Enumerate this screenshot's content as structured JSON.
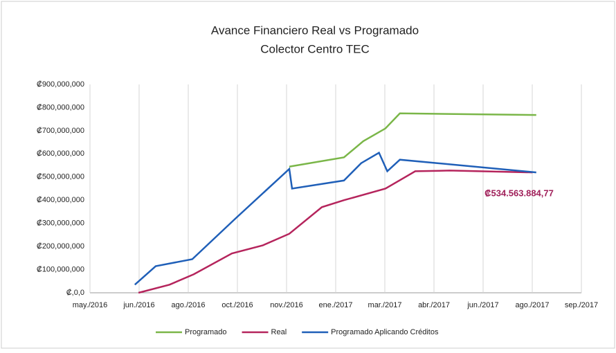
{
  "chart_data": {
    "type": "line",
    "title": [
      "Avance Financiero Real vs Programado",
      "Colector Centro TEC"
    ],
    "xlim": [
      0,
      16
    ],
    "xticks": [
      {
        "value": 0,
        "label": "may./2016"
      },
      {
        "value": 1.6,
        "label": "jun./2016"
      },
      {
        "value": 3.2,
        "label": "ago./2016"
      },
      {
        "value": 4.8,
        "label": "oct./2016"
      },
      {
        "value": 6.4,
        "label": "nov./2016"
      },
      {
        "value": 8,
        "label": "ene./2017"
      },
      {
        "value": 9.6,
        "label": "mar./2017"
      },
      {
        "value": 11.2,
        "label": "abr./2017"
      },
      {
        "value": 12.8,
        "label": "jun./2017"
      },
      {
        "value": 14.4,
        "label": "ago./2017"
      },
      {
        "value": 16,
        "label": "sep./2017"
      }
    ],
    "ylim": [
      0,
      900000000
    ],
    "yticks": [
      {
        "value": 0,
        "label": "₡,0,0"
      },
      {
        "value": 100000000,
        "label": "₡100,000,000"
      },
      {
        "value": 200000000,
        "label": "₡200,000,000"
      },
      {
        "value": 300000000,
        "label": "₡300,000,000"
      },
      {
        "value": 400000000,
        "label": "₡400,000,000"
      },
      {
        "value": 500000000,
        "label": "₡500,000,000"
      },
      {
        "value": 600000000,
        "label": "₡600,000,000"
      },
      {
        "value": 700000000,
        "label": "₡700,000,000"
      },
      {
        "value": 800000000,
        "label": "₡800,000,000"
      },
      {
        "value": 900000000,
        "label": "₡900,000,000"
      }
    ],
    "grid": true,
    "series": [
      {
        "name": "Programado",
        "color": "#7ab648",
        "x": [
          6.49,
          8.27,
          8.9,
          9.62,
          10.09,
          14.53
        ],
        "values": [
          545000000,
          585000000,
          655000000,
          710000000,
          775000000,
          768000000
        ]
      },
      {
        "name": "Real",
        "color": "#b5245c",
        "x": [
          1.58,
          2.59,
          3.38,
          4.62,
          5.63,
          6.49,
          7.55,
          8.27,
          9.62,
          10.59,
          11.71,
          14.41
        ],
        "values": [
          0,
          35000000,
          80000000,
          170000000,
          205000000,
          255000000,
          370000000,
          400000000,
          450000000,
          525000000,
          528000000,
          520000000
        ]
      },
      {
        "name": "Programado Aplicando Créditos",
        "color": "#1f5fb8",
        "x": [
          1.46,
          2.14,
          3.33,
          4.73,
          6.49,
          6.58,
          8.27,
          8.83,
          9.41,
          9.68,
          10.09,
          14.53
        ],
        "values": [
          35000000,
          115000000,
          145000000,
          320000000,
          535000000,
          450000000,
          485000000,
          560000000,
          605000000,
          525000000,
          575000000,
          520000000
        ]
      }
    ],
    "annotation": "₡534.563.884,77",
    "legend": "bottom"
  }
}
